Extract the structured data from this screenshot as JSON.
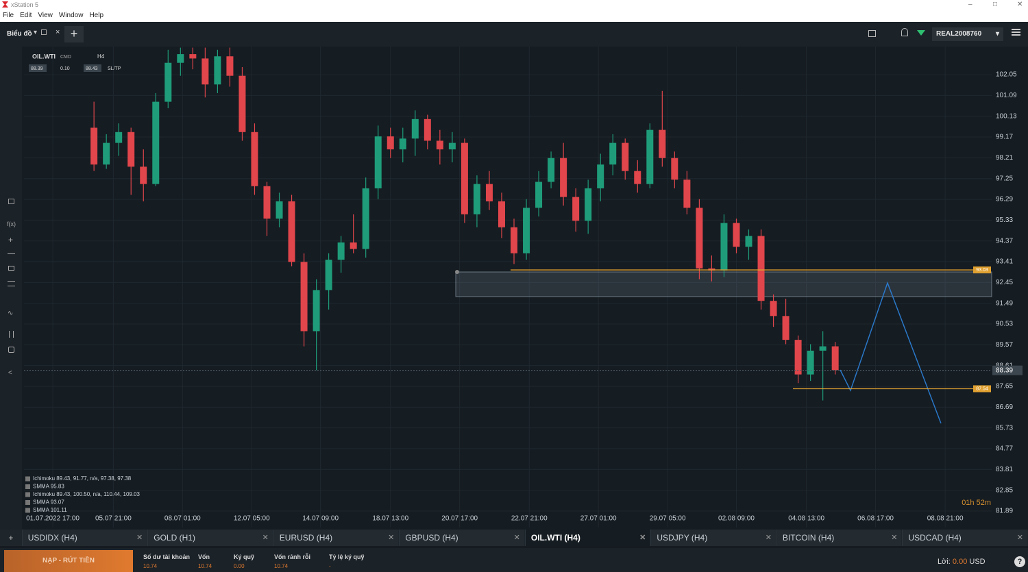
{
  "window": {
    "title": "xStation 5"
  },
  "menu": [
    "File",
    "Edit",
    "View",
    "Window",
    "Help"
  ],
  "toolbar": {
    "chart_button": "Biểu đồ",
    "account_type": "REAL",
    "account_id": "2008760"
  },
  "header": {
    "symbol": "OIL.WTI",
    "kind": "CMD",
    "interval": "H4",
    "bid": "88.39",
    "spread": "0.10",
    "ask": "88.43",
    "sltp": "SL/TP"
  },
  "chart_data": {
    "type": "candlestick",
    "x": [
      0,
      3,
      6,
      9,
      12,
      15,
      18,
      21,
      24,
      27,
      30,
      33,
      36,
      39,
      42,
      45,
      48,
      51,
      54,
      57,
      60,
      63,
      66,
      69,
      72,
      75,
      78,
      81,
      84,
      87,
      90,
      93,
      96,
      99,
      102,
      105,
      108,
      111,
      114,
      117,
      120,
      123,
      126,
      129,
      132,
      135,
      138,
      141,
      144,
      147,
      150,
      153,
      156,
      159,
      162,
      165,
      168,
      171,
      174,
      177,
      180
    ],
    "open": [
      99.6,
      97.9,
      98.9,
      99.4,
      97.8,
      97.0,
      100.8,
      102.6,
      103.0,
      102.8,
      101.6,
      102.9,
      102.0,
      99.4,
      96.9,
      95.4,
      96.2,
      93.4,
      90.2,
      92.1,
      93.5,
      94.3,
      94.0,
      96.8,
      99.2,
      98.6,
      99.1,
      100.0,
      99.0,
      98.6,
      98.9,
      95.6,
      97.0,
      96.2,
      95.0,
      93.8,
      95.9,
      97.1,
      98.2,
      96.4,
      95.3,
      96.8,
      97.9,
      98.9,
      97.6,
      97.0,
      99.5,
      98.2,
      97.2,
      95.9,
      93.1,
      93.0,
      95.2,
      94.1,
      94.6,
      91.6,
      90.9,
      89.8,
      88.2,
      89.3,
      89.5
    ],
    "high": [
      100.8,
      99.3,
      99.8,
      99.6,
      98.6,
      101.2,
      103.2,
      103.3,
      103.3,
      103.3,
      103.2,
      103.3,
      102.4,
      99.8,
      97.1,
      96.6,
      96.5,
      93.8,
      92.6,
      93.8,
      94.6,
      95.6,
      97.3,
      99.7,
      99.6,
      99.6,
      100.4,
      100.2,
      99.5,
      99.4,
      99.1,
      97.4,
      97.6,
      96.6,
      95.4,
      96.3,
      97.6,
      98.5,
      98.9,
      96.8,
      97.2,
      98.4,
      99.3,
      99.1,
      98.1,
      99.8,
      101.3,
      98.5,
      97.6,
      96.3,
      93.7,
      95.6,
      95.4,
      94.9,
      94.9,
      91.9,
      91.7,
      90.0,
      89.6,
      90.2,
      89.7
    ],
    "low": [
      97.6,
      97.7,
      98.3,
      96.5,
      96.2,
      96.9,
      100.5,
      102.0,
      102.3,
      101.0,
      101.2,
      101.5,
      99.0,
      96.5,
      94.6,
      95.0,
      93.2,
      89.5,
      88.4,
      91.2,
      92.9,
      93.8,
      93.6,
      96.3,
      98.2,
      98.0,
      98.3,
      98.6,
      97.9,
      98.0,
      95.2,
      95.0,
      95.8,
      94.5,
      93.3,
      93.5,
      95.5,
      96.8,
      96.0,
      94.8,
      94.7,
      96.2,
      97.4,
      97.2,
      96.6,
      96.8,
      97.8,
      96.8,
      95.6,
      92.6,
      92.5,
      92.7,
      93.8,
      93.5,
      91.2,
      90.4,
      89.6,
      87.8,
      87.9,
      87.0,
      88.2
    ],
    "close": [
      97.9,
      98.9,
      99.4,
      97.8,
      97.0,
      100.8,
      102.6,
      103.0,
      102.8,
      101.6,
      102.9,
      102.0,
      99.4,
      96.9,
      95.4,
      96.2,
      93.4,
      90.2,
      92.1,
      93.5,
      94.3,
      94.0,
      96.8,
      99.2,
      98.6,
      99.1,
      100.0,
      99.0,
      98.6,
      98.9,
      95.6,
      97.0,
      96.2,
      95.0,
      93.8,
      95.9,
      97.1,
      98.2,
      96.4,
      95.3,
      96.8,
      97.9,
      98.9,
      97.6,
      97.0,
      99.5,
      98.2,
      97.2,
      95.9,
      93.1,
      93.0,
      95.2,
      94.1,
      94.6,
      91.6,
      90.9,
      89.8,
      88.2,
      89.3,
      89.5,
      88.4
    ],
    "up_color": "#1f9d7a",
    "down_color": "#e0464b",
    "xlim": [
      -17,
      218
    ],
    "xticks": [
      {
        "value": -10,
        "label": "01.07.2022 17:00"
      },
      {
        "value": 4.7,
        "label": "05.07 21:00"
      },
      {
        "value": 21.5,
        "label": "08.07 01:00"
      },
      {
        "value": 38.3,
        "label": "12.07 05:00"
      },
      {
        "value": 55,
        "label": "14.07 09:00"
      },
      {
        "value": 72,
        "label": "18.07 13:00"
      },
      {
        "value": 88.8,
        "label": "20.07 17:00"
      },
      {
        "value": 105.7,
        "label": "22.07 21:00"
      },
      {
        "value": 122.5,
        "label": "27.07 01:00"
      },
      {
        "value": 139.3,
        "label": "29.07 05:00"
      },
      {
        "value": 156,
        "label": "02.08 09:00"
      },
      {
        "value": 173,
        "label": "04.08 13:00"
      },
      {
        "value": 189.8,
        "label": "06.08 17:00"
      },
      {
        "value": 206.7,
        "label": "08.08 21:00"
      }
    ],
    "ylim": [
      81.13,
      103.35
    ],
    "yticks": [
      102.05,
      101.09,
      100.13,
      99.17,
      98.21,
      97.25,
      96.29,
      95.33,
      94.37,
      93.41,
      92.45,
      91.49,
      90.53,
      89.57,
      88.61,
      87.65,
      86.69,
      85.73,
      84.77,
      83.81,
      82.85,
      81.89
    ],
    "grid": true,
    "price": 88.39,
    "levels": [
      93.03,
      87.54
    ],
    "level_color": "#e0a030",
    "legend": [
      "Ichimoku 89.43, 91.77, n/a, 97.38, 97.38",
      "SMMA 95.83",
      "Ichimoku 89.43, 100.50, n/a, 110.44, 109.03",
      "SMMA 93.07",
      "SMMA 101.11"
    ],
    "timer": "01h 52m"
  },
  "tabs": [
    "USDIDX (H4)",
    "GOLD (H1)",
    "EURUSD (H4)",
    "GBPUSD (H4)",
    "OIL.WTI (H4)",
    "USDJPY (H4)",
    "BITCOIN (H4)",
    "USDCAD (H4)"
  ],
  "active_tab": 4,
  "footer": {
    "deposit": "NẠP - RÚT TIỀN",
    "stats": [
      {
        "label": "Số dư tài khoản",
        "value": "10.74"
      },
      {
        "label": "Vốn",
        "value": "10.74"
      },
      {
        "label": "Ký quỹ",
        "value": "0.00"
      },
      {
        "label": "Vốn rảnh rỗi",
        "value": "10.74"
      },
      {
        "label": "Tỷ lệ ký quỹ",
        "value": "-"
      }
    ],
    "profit_label": "Lời:",
    "profit": "0.00",
    "currency": "USD"
  }
}
